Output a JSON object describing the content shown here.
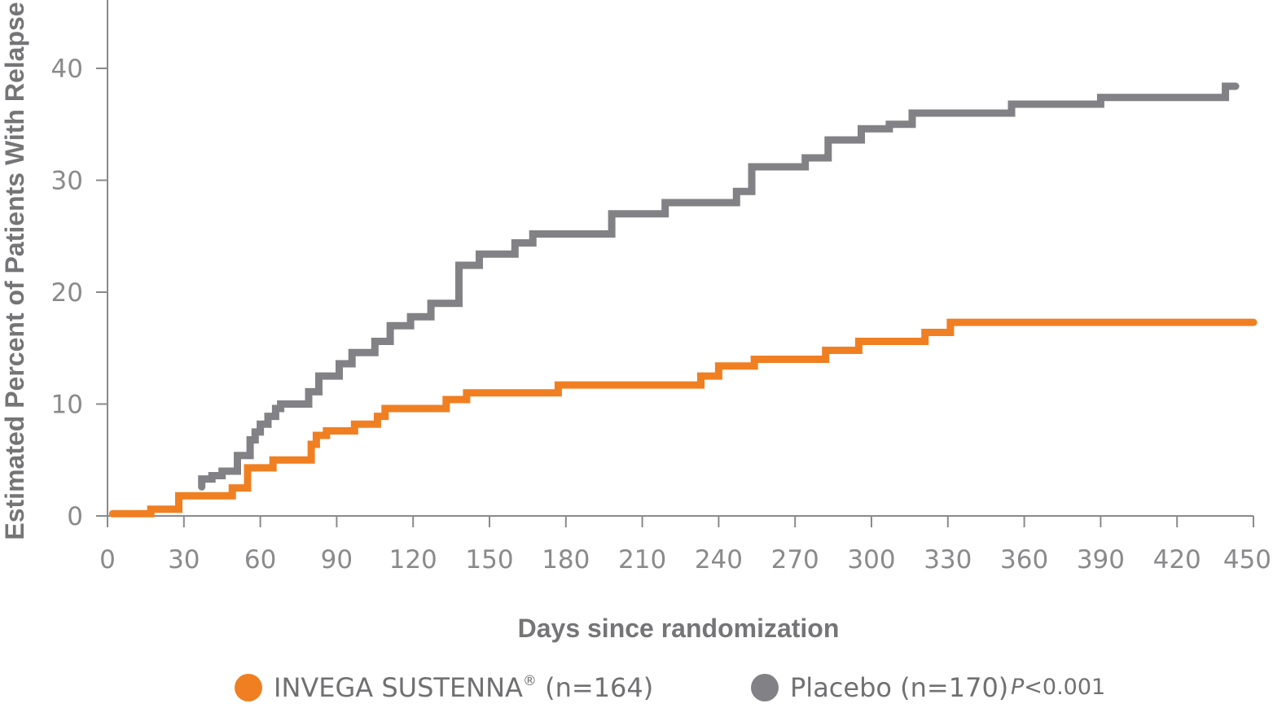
{
  "chart_data": {
    "type": "line",
    "step": true,
    "xlabel": "Days since randomization",
    "ylabel": "Estimated Percent of Patients With Relapse",
    "xlim": [
      0,
      450
    ],
    "ylim": [
      0,
      45
    ],
    "xticks": [
      0,
      30,
      60,
      90,
      120,
      150,
      180,
      210,
      240,
      270,
      300,
      330,
      360,
      390,
      420,
      450
    ],
    "yticks": [
      0,
      10,
      20,
      30,
      40
    ],
    "grid": false,
    "legend_position": "bottom",
    "series": [
      {
        "name": "INVEGA SUSTENNA® (n=164)",
        "color": "#f07f22",
        "points": [
          [
            2,
            0.2
          ],
          [
            17,
            0.2
          ],
          [
            17,
            0.6
          ],
          [
            28,
            0.6
          ],
          [
            28,
            1.8
          ],
          [
            49,
            1.8
          ],
          [
            49,
            2.5
          ],
          [
            55,
            2.5
          ],
          [
            55,
            4.3
          ],
          [
            65,
            4.3
          ],
          [
            65,
            5.0
          ],
          [
            80,
            5.0
          ],
          [
            80,
            6.4
          ],
          [
            82,
            6.4
          ],
          [
            82,
            7.2
          ],
          [
            86,
            7.2
          ],
          [
            86,
            7.6
          ],
          [
            97,
            7.6
          ],
          [
            97,
            8.2
          ],
          [
            106,
            8.2
          ],
          [
            106,
            8.9
          ],
          [
            109,
            8.9
          ],
          [
            109,
            9.6
          ],
          [
            133,
            9.6
          ],
          [
            133,
            10.4
          ],
          [
            141,
            10.4
          ],
          [
            141,
            11.0
          ],
          [
            177,
            11.0
          ],
          [
            177,
            11.7
          ],
          [
            233,
            11.7
          ],
          [
            233,
            12.5
          ],
          [
            240,
            12.5
          ],
          [
            240,
            13.4
          ],
          [
            254,
            13.4
          ],
          [
            254,
            14.0
          ],
          [
            282,
            14.0
          ],
          [
            282,
            14.8
          ],
          [
            295,
            14.8
          ],
          [
            295,
            15.6
          ],
          [
            321,
            15.6
          ],
          [
            321,
            16.4
          ],
          [
            331,
            16.4
          ],
          [
            331,
            17.3
          ],
          [
            450,
            17.3
          ]
        ]
      },
      {
        "name": "Placebo (n=170)",
        "color": "#828286",
        "points": [
          [
            37,
            2.6
          ],
          [
            37,
            3.3
          ],
          [
            41,
            3.3
          ],
          [
            41,
            3.6
          ],
          [
            45,
            3.6
          ],
          [
            45,
            4.0
          ],
          [
            51,
            4.0
          ],
          [
            51,
            5.4
          ],
          [
            56,
            5.4
          ],
          [
            56,
            6.8
          ],
          [
            58,
            6.8
          ],
          [
            58,
            7.5
          ],
          [
            60,
            7.5
          ],
          [
            60,
            8.2
          ],
          [
            63,
            8.2
          ],
          [
            63,
            8.9
          ],
          [
            66,
            8.9
          ],
          [
            66,
            9.6
          ],
          [
            68,
            9.6
          ],
          [
            68,
            10.0
          ],
          [
            79,
            10.0
          ],
          [
            79,
            11.1
          ],
          [
            83,
            11.1
          ],
          [
            83,
            12.5
          ],
          [
            91,
            12.5
          ],
          [
            91,
            13.6
          ],
          [
            96,
            13.6
          ],
          [
            96,
            14.6
          ],
          [
            105,
            14.6
          ],
          [
            105,
            15.6
          ],
          [
            111,
            15.6
          ],
          [
            111,
            17.0
          ],
          [
            119,
            17.0
          ],
          [
            119,
            17.8
          ],
          [
            127,
            17.8
          ],
          [
            127,
            19.0
          ],
          [
            138,
            19.0
          ],
          [
            138,
            22.4
          ],
          [
            146,
            22.4
          ],
          [
            146,
            23.4
          ],
          [
            160,
            23.4
          ],
          [
            160,
            24.4
          ],
          [
            167,
            24.4
          ],
          [
            167,
            25.2
          ],
          [
            198,
            25.2
          ],
          [
            198,
            27.0
          ],
          [
            219,
            27.0
          ],
          [
            219,
            28.0
          ],
          [
            247,
            28.0
          ],
          [
            247,
            29.0
          ],
          [
            253,
            29.0
          ],
          [
            253,
            31.2
          ],
          [
            274,
            31.2
          ],
          [
            274,
            32.0
          ],
          [
            283,
            32.0
          ],
          [
            283,
            33.6
          ],
          [
            296,
            33.6
          ],
          [
            296,
            34.6
          ],
          [
            307,
            34.6
          ],
          [
            307,
            35.0
          ],
          [
            316,
            35.0
          ],
          [
            316,
            36.0
          ],
          [
            355,
            36.0
          ],
          [
            355,
            36.8
          ],
          [
            390,
            36.8
          ],
          [
            390,
            37.4
          ],
          [
            439,
            37.4
          ],
          [
            439,
            38.4
          ],
          [
            443,
            38.4
          ]
        ]
      }
    ],
    "annotation": "P<0.001"
  },
  "legend": {
    "invega_label": "INVEGA SUSTENNA",
    "invega_reg": "®",
    "invega_count": " (n=164)",
    "placebo_label": "Placebo (n=170)",
    "p_prefix": "P",
    "p_value": "<0.001"
  }
}
